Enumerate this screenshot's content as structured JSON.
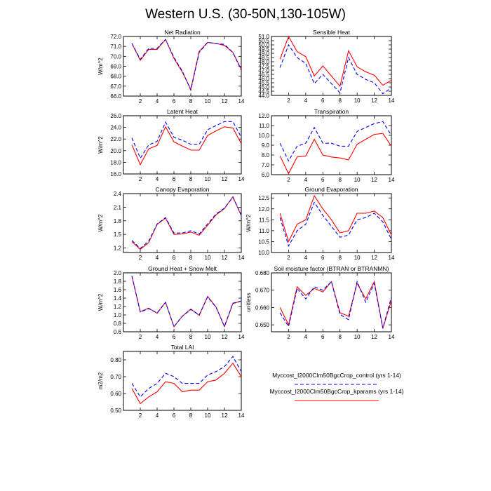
{
  "title": "Western U.S. (30-50N,130-105W)",
  "legend": {
    "entries": [
      {
        "label": "Myccost_I2000Clm50BgcCrop_control (yrs 1-14)",
        "color": "#0000ff",
        "dash": "dashed"
      },
      {
        "label": "Myccost_I2000Clm50BgcCrop_kparams (yrs 1-14)",
        "color": "#ff0000",
        "dash": "solid"
      }
    ]
  },
  "chart_data": [
    {
      "type": "line",
      "title": "Net Radiation",
      "ylabel": "W/m^2",
      "x": [
        1,
        2,
        3,
        4,
        5,
        6,
        7,
        8,
        9,
        10,
        11,
        12,
        13,
        14
      ],
      "xlim": [
        0,
        14
      ],
      "xticks": [
        "2",
        "4",
        "6",
        "8",
        "10",
        "12",
        "14"
      ],
      "ylim": [
        66.0,
        72.0
      ],
      "yticks": [
        "66.0",
        "67.0",
        "68.0",
        "69.0",
        "70.0",
        "71.0",
        "72.0"
      ],
      "series": [
        {
          "name": "control",
          "values": [
            71.3,
            69.7,
            70.8,
            70.8,
            71.7,
            69.9,
            68.5,
            66.6,
            70.4,
            71.4,
            71.3,
            71.2,
            70.4,
            68.6
          ]
        },
        {
          "name": "kparams",
          "values": [
            71.3,
            69.6,
            70.7,
            70.7,
            71.7,
            69.8,
            68.4,
            66.7,
            70.5,
            71.4,
            71.3,
            71.1,
            70.4,
            68.7
          ]
        }
      ]
    },
    {
      "type": "line",
      "title": "Sensible Heat",
      "ylabel": "",
      "x": [
        1,
        2,
        3,
        4,
        5,
        6,
        7,
        8,
        9,
        10,
        11,
        12,
        13,
        14
      ],
      "xlim": [
        0,
        14
      ],
      "xticks": [
        "2",
        "4",
        "6",
        "8",
        "10",
        "12",
        "14"
      ],
      "ylim": [
        44.0,
        51.0
      ],
      "yticks": [
        "44.0",
        "44.5",
        "45.0",
        "45.5",
        "46.0",
        "46.5",
        "47.0",
        "47.5",
        "48.0",
        "48.5",
        "49.0",
        "49.5",
        "50.0",
        "50.5",
        "51.0"
      ],
      "series": [
        {
          "name": "control",
          "values": [
            47.3,
            50.0,
            48.5,
            47.8,
            45.4,
            46.5,
            45.4,
            44.3,
            48.5,
            46.5,
            45.9,
            45.5,
            44.2,
            44.9
          ]
        },
        {
          "name": "kparams",
          "values": [
            48.3,
            51.0,
            49.2,
            48.6,
            46.3,
            47.5,
            46.3,
            45.1,
            49.3,
            47.4,
            46.8,
            46.4,
            45.2,
            45.8
          ]
        }
      ]
    },
    {
      "type": "line",
      "title": "Latent Heat",
      "ylabel": "W/m^2",
      "x": [
        1,
        2,
        3,
        4,
        5,
        6,
        7,
        8,
        9,
        10,
        11,
        12,
        13,
        14
      ],
      "xlim": [
        0,
        14
      ],
      "xticks": [
        "2",
        "4",
        "6",
        "8",
        "10",
        "12",
        "14"
      ],
      "ylim": [
        16.0,
        26.0
      ],
      "yticks": [
        "16.0",
        "18.0",
        "20.0",
        "22.0",
        "24.0",
        "26.0"
      ],
      "series": [
        {
          "name": "control",
          "values": [
            22.2,
            18.7,
            21.0,
            21.6,
            24.9,
            22.3,
            21.8,
            21.1,
            21.1,
            23.6,
            24.3,
            25.0,
            25.0,
            22.3
          ]
        },
        {
          "name": "kparams",
          "values": [
            21.0,
            17.6,
            20.3,
            20.9,
            24.1,
            21.5,
            20.8,
            20.1,
            20.1,
            22.6,
            23.4,
            24.1,
            23.9,
            21.2
          ]
        }
      ]
    },
    {
      "type": "line",
      "title": "Transpiration",
      "ylabel": "",
      "x": [
        1,
        2,
        3,
        4,
        5,
        6,
        7,
        8,
        9,
        10,
        11,
        12,
        13,
        14
      ],
      "xlim": [
        0,
        14
      ],
      "xticks": [
        "2",
        "4",
        "6",
        "8",
        "10",
        "12",
        "14"
      ],
      "ylim": [
        6.0,
        12.0
      ],
      "yticks": [
        "6.0",
        "7.0",
        "8.0",
        "9.0",
        "10.0",
        "11.0",
        "12.0"
      ],
      "series": [
        {
          "name": "control",
          "values": [
            9.2,
            7.4,
            8.9,
            9.2,
            10.8,
            9.2,
            9.2,
            8.9,
            8.9,
            10.4,
            10.8,
            11.2,
            11.4,
            10.0
          ]
        },
        {
          "name": "kparams",
          "values": [
            7.9,
            6.1,
            7.8,
            7.9,
            9.6,
            8.0,
            7.8,
            7.7,
            7.5,
            9.1,
            9.6,
            10.1,
            10.2,
            8.9
          ]
        }
      ]
    },
    {
      "type": "line",
      "title": "Canopy Evaporation",
      "ylabel": "W/m^2",
      "x": [
        1,
        2,
        3,
        4,
        5,
        6,
        7,
        8,
        9,
        10,
        11,
        12,
        13,
        14
      ],
      "xlim": [
        0,
        14
      ],
      "xticks": [
        "2",
        "4",
        "6",
        "8",
        "10",
        "12",
        "14"
      ],
      "ylim": [
        1.1,
        2.4
      ],
      "yticks": [
        "1.2",
        "1.5",
        "1.8",
        "2.1",
        "2.4"
      ],
      "series": [
        {
          "name": "control",
          "values": [
            1.37,
            1.19,
            1.35,
            1.73,
            1.87,
            1.53,
            1.53,
            1.58,
            1.51,
            1.73,
            1.95,
            2.08,
            2.32,
            1.93
          ]
        },
        {
          "name": "kparams",
          "values": [
            1.34,
            1.17,
            1.32,
            1.72,
            1.86,
            1.5,
            1.51,
            1.55,
            1.48,
            1.7,
            1.93,
            2.07,
            2.33,
            1.91
          ]
        }
      ]
    },
    {
      "type": "line",
      "title": "Ground Evaporation",
      "ylabel": "W/m^2",
      "x": [
        1,
        2,
        3,
        4,
        5,
        6,
        7,
        8,
        9,
        10,
        11,
        12,
        13,
        14
      ],
      "xlim": [
        0,
        14
      ],
      "xticks": [
        "2",
        "4",
        "6",
        "8",
        "10",
        "12",
        "14"
      ],
      "ylim": [
        10.0,
        12.7
      ],
      "yticks": [
        "10.0",
        "10.5",
        "11.0",
        "11.5",
        "12.0",
        "12.5"
      ],
      "series": [
        {
          "name": "control",
          "values": [
            11.6,
            10.3,
            11.0,
            11.3,
            12.3,
            11.7,
            11.2,
            10.7,
            10.8,
            11.5,
            11.6,
            11.8,
            11.4,
            10.6
          ]
        },
        {
          "name": "kparams",
          "values": [
            11.8,
            10.5,
            11.3,
            11.5,
            12.6,
            12.0,
            11.5,
            10.9,
            11.0,
            11.8,
            11.8,
            11.9,
            11.6,
            10.8
          ]
        }
      ]
    },
    {
      "type": "line",
      "title": "Ground Heat + Snow Melt",
      "ylabel": "W/m^2",
      "x": [
        1,
        2,
        3,
        4,
        5,
        6,
        7,
        8,
        9,
        10,
        11,
        12,
        13,
        14
      ],
      "xlim": [
        0,
        14
      ],
      "xticks": [
        "2",
        "4",
        "6",
        "8",
        "10",
        "12",
        "14"
      ],
      "ylim": [
        0.6,
        2.0
      ],
      "yticks": [
        "0.6",
        "0.8",
        "1.0",
        "1.2",
        "1.4",
        "1.6",
        "1.8",
        "2.0"
      ],
      "series": [
        {
          "name": "control",
          "values": [
            1.93,
            1.07,
            1.15,
            1.05,
            1.3,
            0.72,
            0.97,
            1.13,
            1.0,
            1.43,
            1.18,
            0.73,
            1.28,
            1.33
          ]
        },
        {
          "name": "kparams",
          "values": [
            1.92,
            1.08,
            1.16,
            1.04,
            1.3,
            0.72,
            0.97,
            1.14,
            0.99,
            1.44,
            1.19,
            0.72,
            1.27,
            1.33
          ]
        }
      ]
    },
    {
      "type": "line",
      "title": "Soil moisture factor (BTRAN or BTRANMN)",
      "ylabel": "unitless",
      "x": [
        1,
        2,
        3,
        4,
        5,
        6,
        7,
        8,
        9,
        10,
        11,
        12,
        13,
        14
      ],
      "xlim": [
        0,
        14
      ],
      "xticks": [
        "2",
        "4",
        "6",
        "8",
        "10",
        "12",
        "14"
      ],
      "ylim": [
        0.646,
        0.68
      ],
      "yticks": [
        "0.650",
        "0.660",
        "0.670",
        "0.680"
      ],
      "series": [
        {
          "name": "control",
          "values": [
            0.657,
            0.649,
            0.671,
            0.665,
            0.672,
            0.67,
            0.675,
            0.656,
            0.653,
            0.675,
            0.663,
            0.674,
            0.648,
            0.666
          ]
        },
        {
          "name": "kparams",
          "values": [
            0.66,
            0.65,
            0.672,
            0.667,
            0.671,
            0.669,
            0.675,
            0.657,
            0.655,
            0.674,
            0.665,
            0.675,
            0.648,
            0.664
          ]
        }
      ]
    },
    {
      "type": "line",
      "title": "Total LAI",
      "ylabel": "m2/m2",
      "x": [
        1,
        2,
        3,
        4,
        5,
        6,
        7,
        8,
        9,
        10,
        11,
        12,
        13,
        14
      ],
      "xlim": [
        0,
        14
      ],
      "xticks": [
        "2",
        "4",
        "6",
        "8",
        "10",
        "12",
        "14"
      ],
      "ylim": [
        0.5,
        0.85
      ],
      "yticks": [
        "0.50",
        "0.60",
        "0.70",
        "0.80"
      ],
      "series": [
        {
          "name": "control",
          "values": [
            0.66,
            0.58,
            0.63,
            0.66,
            0.72,
            0.7,
            0.66,
            0.66,
            0.66,
            0.71,
            0.73,
            0.76,
            0.82,
            0.73
          ]
        },
        {
          "name": "kparams",
          "values": [
            0.63,
            0.54,
            0.58,
            0.61,
            0.67,
            0.66,
            0.61,
            0.62,
            0.62,
            0.67,
            0.68,
            0.72,
            0.78,
            0.7
          ]
        }
      ]
    }
  ]
}
